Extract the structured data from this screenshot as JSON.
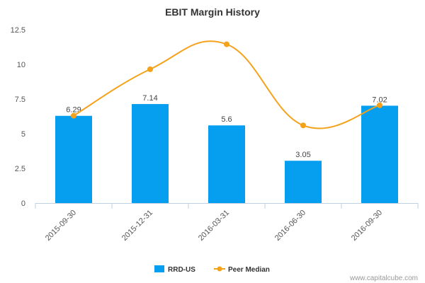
{
  "chart_data": {
    "type": "bar",
    "title": "EBIT Margin History",
    "xlabel": "",
    "ylabel": "",
    "categories": [
      "2015-09-30",
      "2015-12-31",
      "2016-03-31",
      "2016-06-30",
      "2016-09-30"
    ],
    "series": [
      {
        "name": "RRD-US",
        "type": "bar",
        "color": "#069ff0",
        "values": [
          6.29,
          7.14,
          5.6,
          3.05,
          7.02
        ],
        "data_labels": [
          "6.29",
          "7.14",
          "5.6",
          "3.05",
          "7.02"
        ]
      },
      {
        "name": "Peer Median",
        "type": "line",
        "color": "#f5a21b",
        "values": [
          6.3,
          9.65,
          11.45,
          5.6,
          7.05
        ]
      }
    ],
    "ylim": [
      0,
      12.5
    ],
    "yticks": [
      "0",
      "2.5",
      "5",
      "7.5",
      "10",
      "12.5"
    ],
    "grid": false,
    "legend": "bottom-center"
  },
  "credit": "www.capitalcube.com"
}
